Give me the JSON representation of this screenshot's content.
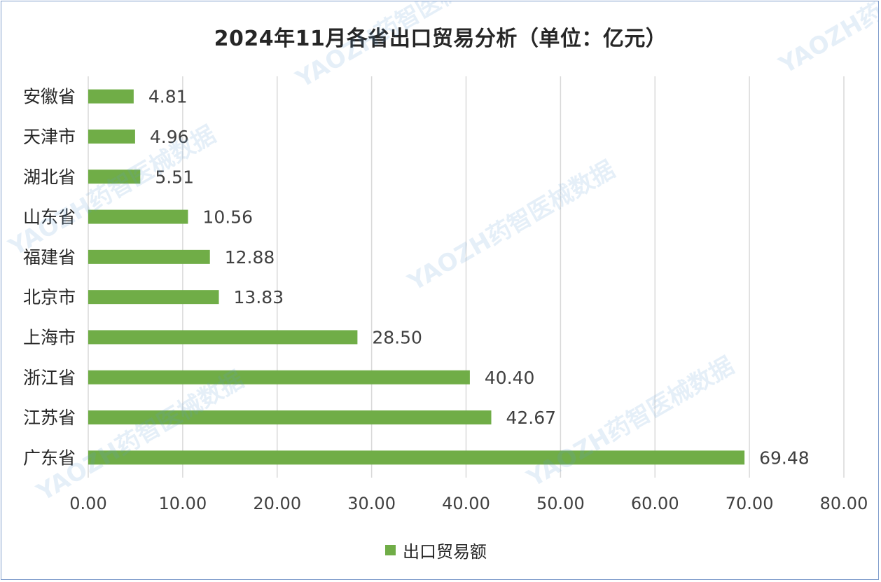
{
  "chart_data": {
    "type": "bar",
    "orientation": "horizontal",
    "title": "2024年11月各省出口贸易分析（单位：亿元）",
    "categories": [
      "安徽省",
      "天津市",
      "湖北省",
      "山东省",
      "福建省",
      "北京市",
      "上海市",
      "浙江省",
      "江苏省",
      "广东省"
    ],
    "series": [
      {
        "name": "出口贸易额",
        "values": [
          4.81,
          4.96,
          5.51,
          10.56,
          12.88,
          13.83,
          28.5,
          40.4,
          42.67,
          69.48
        ],
        "labels": [
          "4.81",
          "4.96",
          "5.51",
          "10.56",
          "12.88",
          "13.83",
          "28.50",
          "40.40",
          "42.67",
          "69.48"
        ],
        "color": "#70ad47"
      }
    ],
    "xlim": [
      0,
      80
    ],
    "xticks": [
      "0.00",
      "10.00",
      "20.00",
      "30.00",
      "40.00",
      "50.00",
      "60.00",
      "70.00",
      "80.00"
    ],
    "grid": true,
    "legend_position": "bottom"
  },
  "watermark": {
    "text": "YAOZH药智医械数据"
  }
}
